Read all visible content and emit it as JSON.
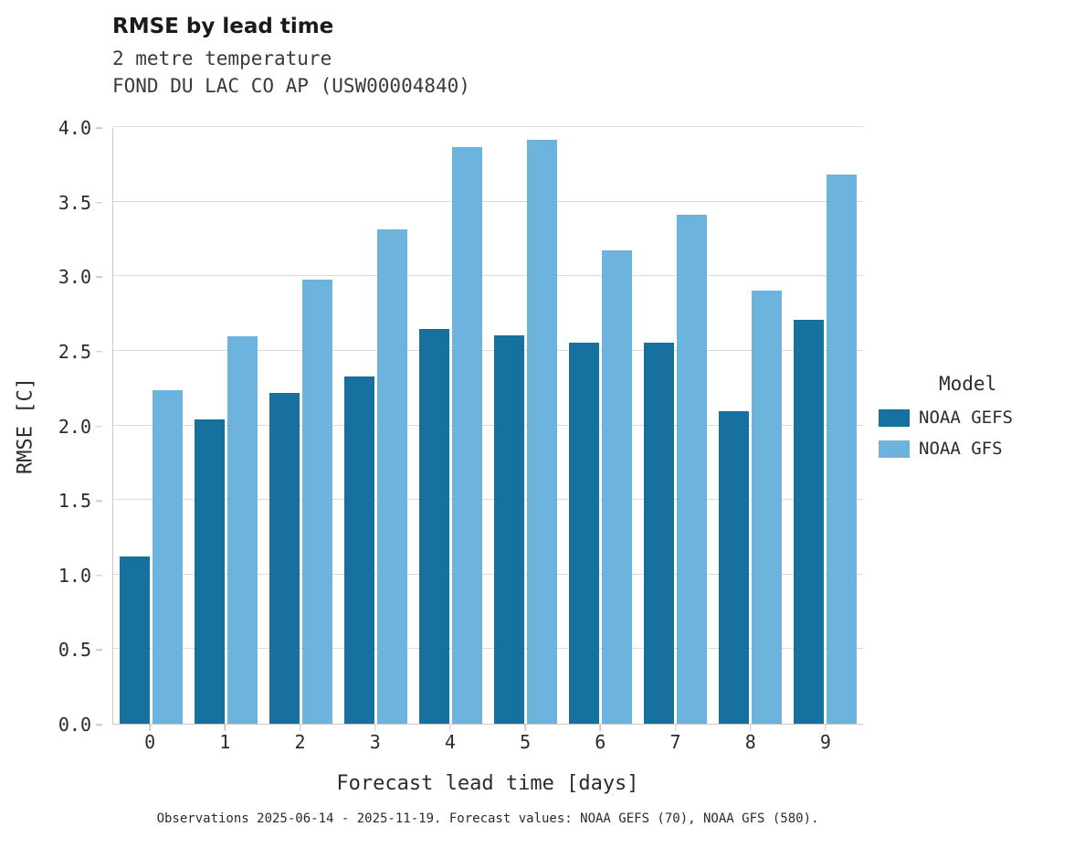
{
  "header": {
    "title": "RMSE by lead time",
    "subtitle_line1": "2 metre temperature",
    "subtitle_line2": "FOND DU LAC CO AP (USW00004840)"
  },
  "chart_data": {
    "type": "bar",
    "categories": [
      "0",
      "1",
      "2",
      "3",
      "4",
      "5",
      "6",
      "7",
      "8",
      "9"
    ],
    "series": [
      {
        "name": "NOAA GEFS",
        "color": "#17719f",
        "values": [
          1.12,
          2.04,
          2.22,
          2.33,
          2.65,
          2.61,
          2.56,
          2.56,
          2.1,
          2.71
        ]
      },
      {
        "name": "NOAA GFS",
        "color": "#6cb3de",
        "values": [
          2.24,
          2.6,
          2.98,
          3.32,
          3.87,
          3.92,
          3.18,
          3.42,
          2.91,
          3.69
        ]
      }
    ],
    "title": "RMSE by lead time",
    "xlabel": "Forecast lead time [days]",
    "ylabel": "RMSE [C]",
    "ylim": [
      0.0,
      4.0
    ],
    "ytick_step": 0.5,
    "grid": true,
    "legend_title": "Model",
    "legend_position": "right"
  },
  "footer": {
    "caption": "Observations 2025-06-14 - 2025-11-19. Forecast values: NOAA GEFS (70), NOAA GFS (580)."
  }
}
